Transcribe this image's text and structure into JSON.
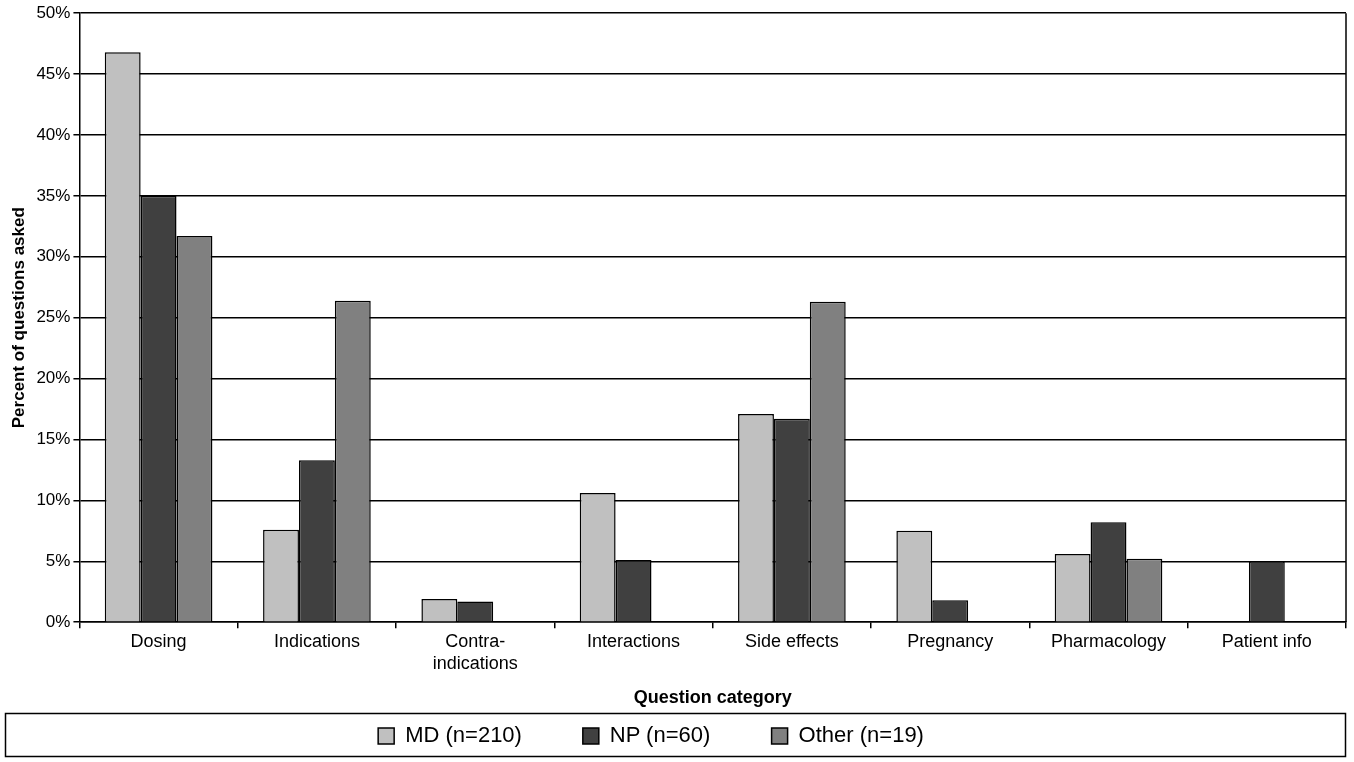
{
  "chart_data": {
    "type": "bar",
    "xlabel": "Question category",
    "ylabel": "Percent of questions asked",
    "categories": [
      "Dosing",
      "Indications",
      "Contra-indications",
      "Interactions",
      "Side effects",
      "Pregnancy",
      "Pharmacology",
      "Patient info"
    ],
    "series": [
      {
        "name": "MD (n=210)",
        "color": "#c0c0c0",
        "values": [
          46.8,
          7.6,
          1.9,
          10.6,
          17.1,
          7.5,
          5.6,
          null
        ]
      },
      {
        "name": "NP (n=60)",
        "color": "#404040",
        "values": [
          35.0,
          13.3,
          1.7,
          5.1,
          16.7,
          1.8,
          8.2,
          5.0
        ]
      },
      {
        "name": "Other (n=19)",
        "color": "#808080",
        "values": [
          31.7,
          26.4,
          null,
          null,
          26.3,
          null,
          5.2,
          null
        ]
      }
    ],
    "ylim": [
      0,
      50
    ],
    "yticks": [
      {
        "value": 0,
        "label": "0%"
      },
      {
        "value": 5,
        "label": "5%"
      },
      {
        "value": 10,
        "label": "10%"
      },
      {
        "value": 15,
        "label": "15%"
      },
      {
        "value": 20,
        "label": "20%"
      },
      {
        "value": 25,
        "label": "25%"
      },
      {
        "value": 30,
        "label": "30%"
      },
      {
        "value": 35,
        "label": "35%"
      },
      {
        "value": 40,
        "label": "40%"
      },
      {
        "value": 45,
        "label": "45%"
      },
      {
        "value": 50,
        "label": "50%"
      }
    ],
    "grid": "y",
    "legend": "bottom"
  }
}
